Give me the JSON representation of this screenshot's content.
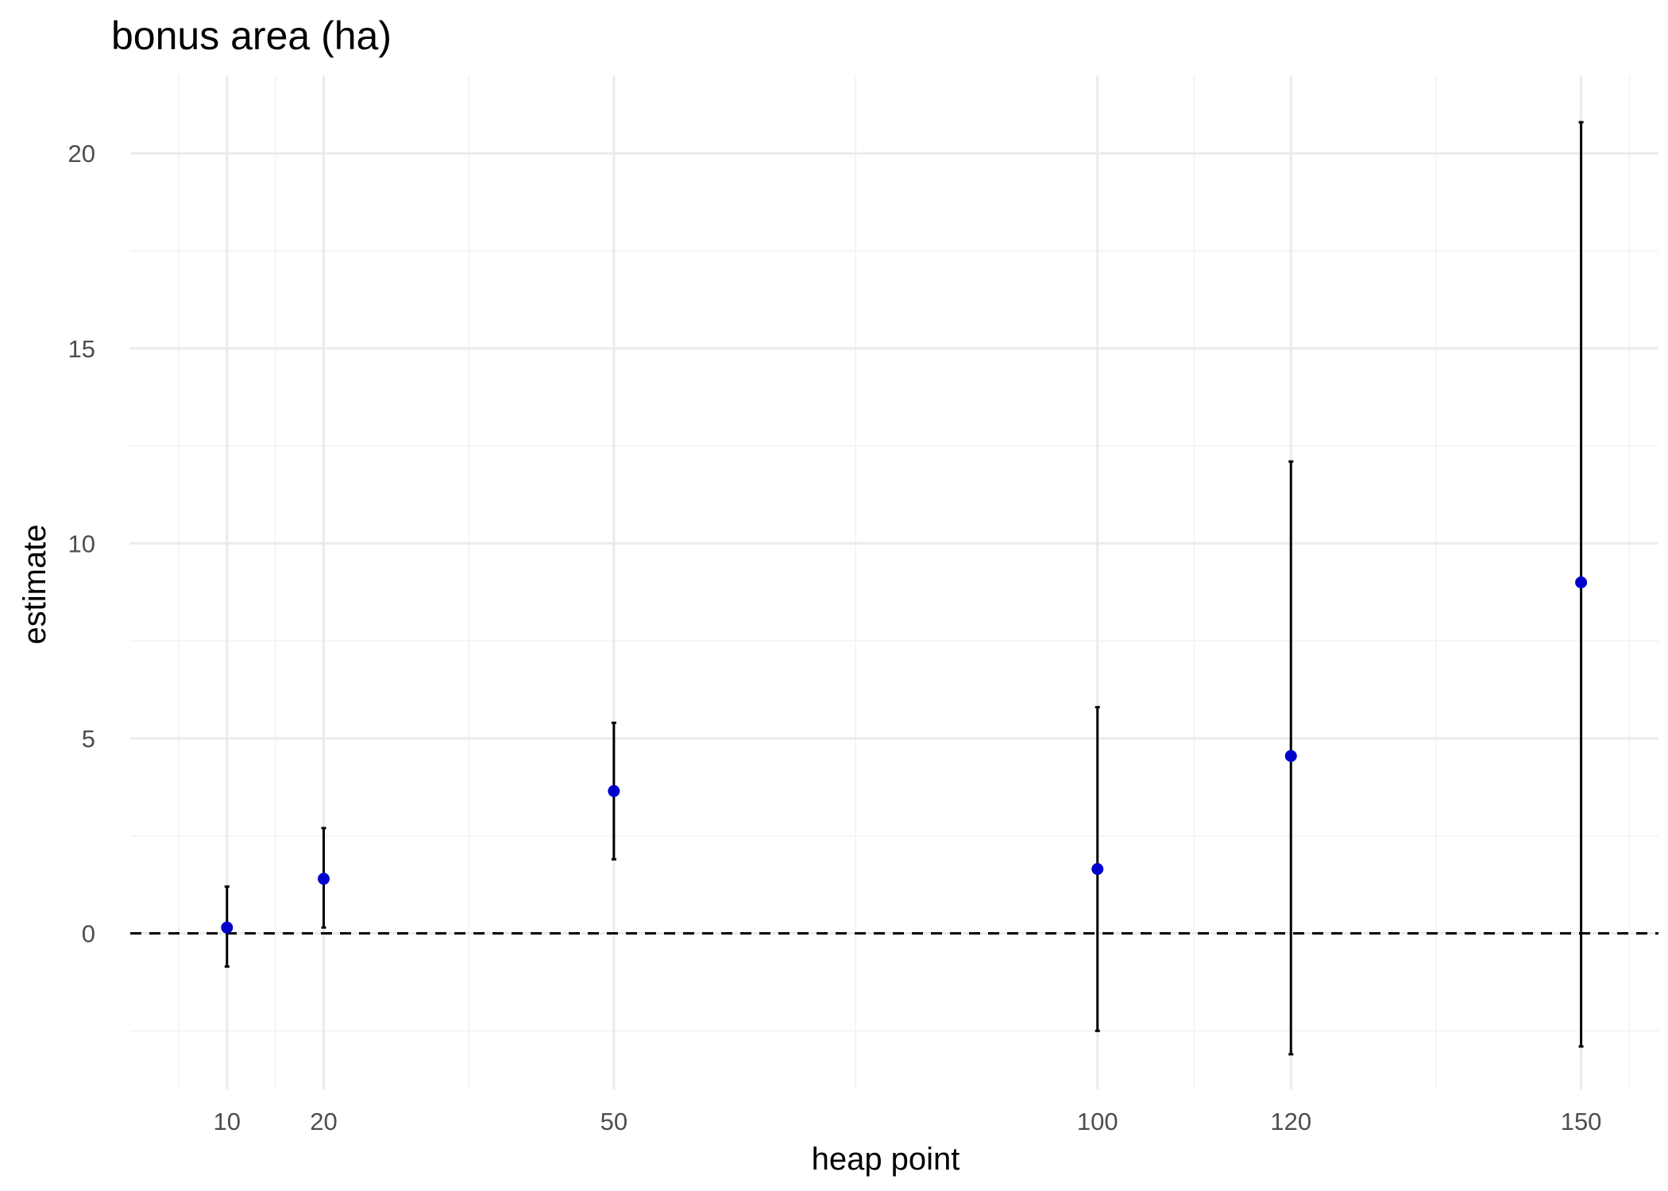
{
  "chart_data": {
    "type": "scatter",
    "title": "bonus area (ha)",
    "xlabel": "heap point",
    "ylabel": "estimate",
    "xlim": [
      0,
      158
    ],
    "ylim": [
      -4.0,
      22.0
    ],
    "x_ticks": [
      10,
      20,
      50,
      100,
      120,
      150
    ],
    "x_minor_ticks": [
      5,
      15,
      35,
      75,
      110,
      135,
      155
    ],
    "y_ticks": [
      0,
      5,
      10,
      15,
      20
    ],
    "y_minor_ticks": [
      -2.5,
      2.5,
      7.5,
      12.5,
      17.5
    ],
    "grid": true,
    "reference_line": {
      "y": 0,
      "style": "dashed",
      "color": "#000000"
    },
    "point_color": "#0000cd",
    "errorbar_color": "#000000",
    "points": [
      {
        "x": 10,
        "y": 0.15,
        "ymin": -0.85,
        "ymax": 1.2
      },
      {
        "x": 20,
        "y": 1.4,
        "ymin": 0.15,
        "ymax": 2.7
      },
      {
        "x": 50,
        "y": 3.65,
        "ymin": 1.9,
        "ymax": 5.4
      },
      {
        "x": 100,
        "y": 1.65,
        "ymin": -2.5,
        "ymax": 5.8
      },
      {
        "x": 120,
        "y": 4.55,
        "ymin": -3.1,
        "ymax": 12.1
      },
      {
        "x": 150,
        "y": 9.0,
        "ymin": -2.9,
        "ymax": 20.8
      }
    ]
  }
}
